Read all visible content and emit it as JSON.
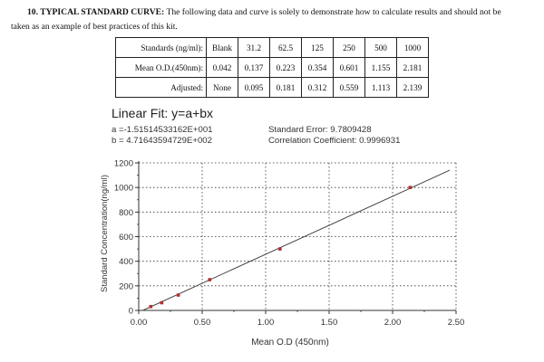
{
  "intro": {
    "heading": "10. TYPICAL STANDARD CURVE:",
    "text_part1": " The following data and curve is solely to demonstrate how to calculate results and should not be",
    "text_part2": "taken as an example of best practices of this kit."
  },
  "table": {
    "row_headers": [
      "Standards (ng/ml):",
      "Mean O.D.(450nm):",
      "Adjusted:"
    ],
    "standards": [
      "Blank",
      "31.2",
      "62.5",
      "125",
      "250",
      "500",
      "1000"
    ],
    "mean_od": [
      "0.042",
      "0.137",
      "0.223",
      "0.354",
      "0.601",
      "1.155",
      "2.181"
    ],
    "adjusted": [
      "None",
      "0.095",
      "0.181",
      "0.312",
      "0.559",
      "1.113",
      "2.139"
    ]
  },
  "fit": {
    "title": "Linear Fit: y=a+bx",
    "a": "a =-1.51514533162E+001",
    "b": "b = 4.71643594729E+002",
    "std_error": "Standard Error: 9.7809428",
    "corr": "Correlation Coefficient: 0.9996931"
  },
  "chart_data": {
    "type": "scatter",
    "xlabel": "Mean O.D (450nm)",
    "ylabel": "Standard Concentration(ng/ml)",
    "xlim": [
      0,
      2.5
    ],
    "ylim": [
      0,
      1200
    ],
    "x_ticks": [
      "0.00",
      "0.50",
      "1.00",
      "1.50",
      "2.00",
      "2.50"
    ],
    "y_ticks": [
      "0",
      "200",
      "400",
      "600",
      "800",
      "1000",
      "1200"
    ],
    "grid": true,
    "points": [
      {
        "x": 0.095,
        "y": 31.2
      },
      {
        "x": 0.181,
        "y": 62.5
      },
      {
        "x": 0.312,
        "y": 125
      },
      {
        "x": 0.559,
        "y": 250
      },
      {
        "x": 1.113,
        "y": 500
      },
      {
        "x": 2.139,
        "y": 1000
      }
    ],
    "fit_line": {
      "a": -15.1514533162,
      "b": 471.643594729
    },
    "colors": {
      "points": "#b03030",
      "line": "#444444",
      "grid": "#333333"
    }
  }
}
